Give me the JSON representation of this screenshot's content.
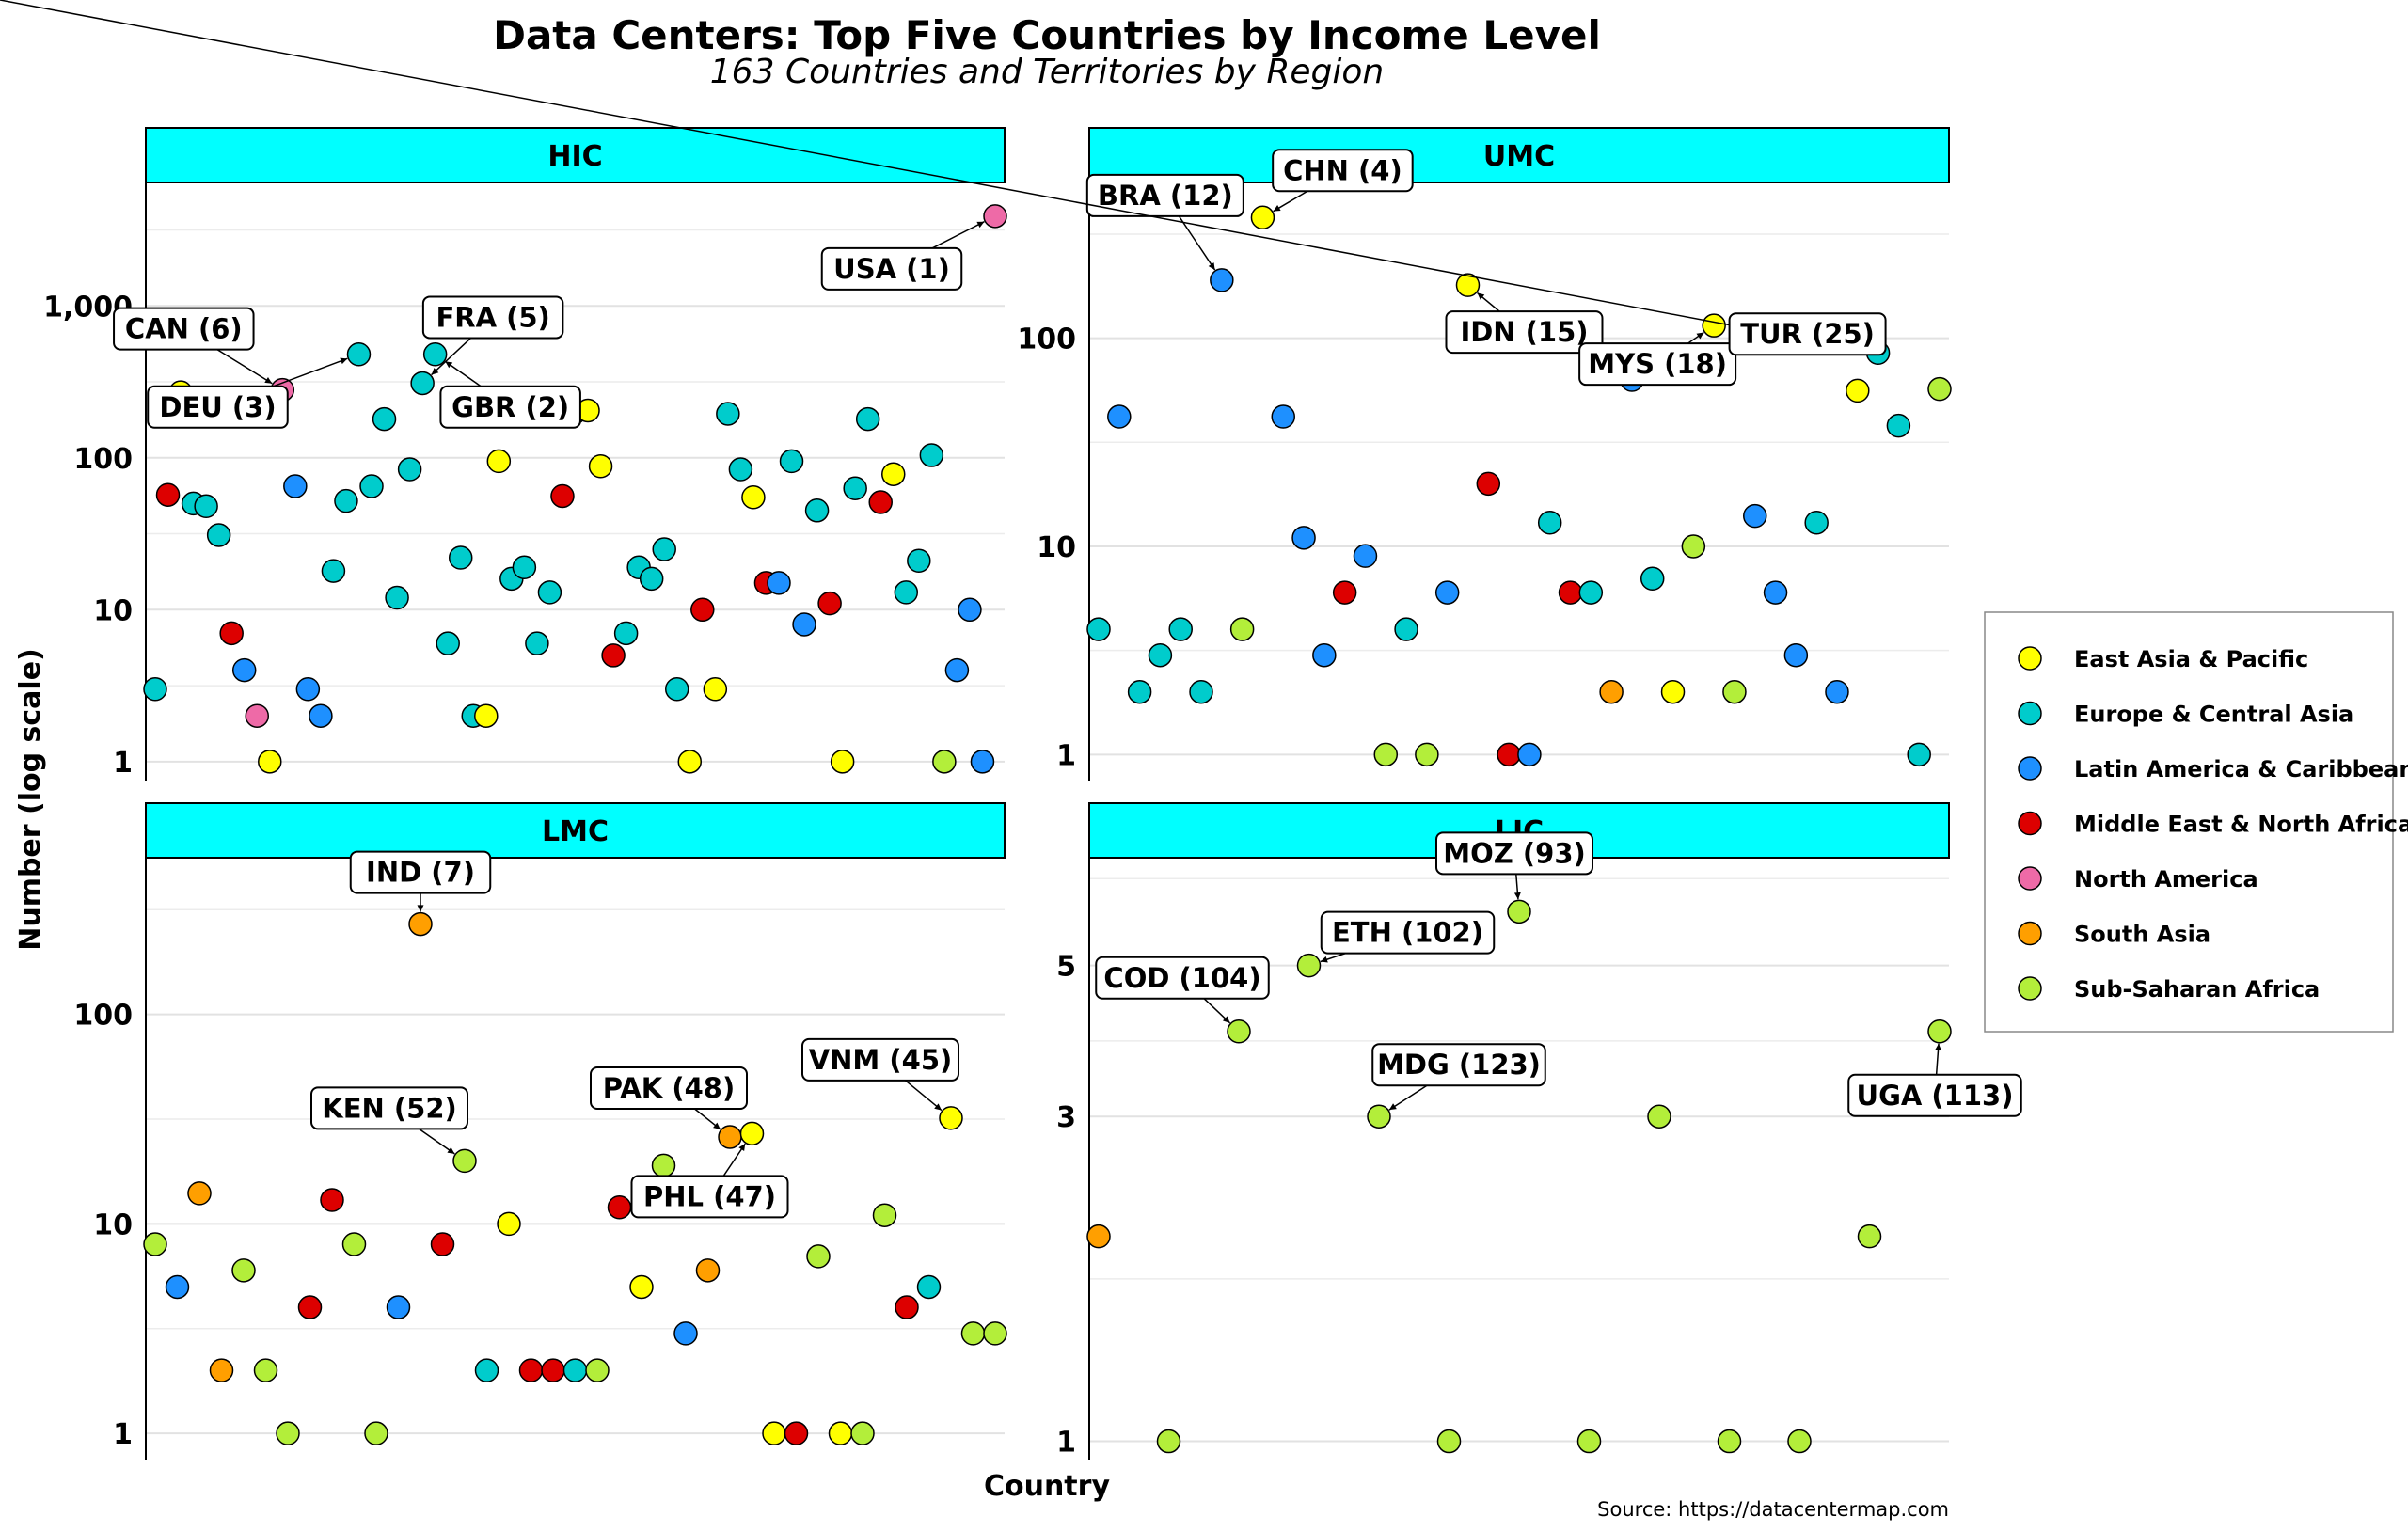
{
  "title": "Data Centers: Top Five Countries by Income Level",
  "subtitle": "163 Countries and Territories by Region",
  "caption": "Source: https://datacentermap.com",
  "region_colors": {
    "East Asia & Pacific": "#ffff00",
    "Europe & Central Asia": "#00cccc",
    "Latin America & Caribbean": "#1e90ff",
    "Middle East & North Africa": "#dd0000",
    "North America": "#ee6aa7",
    "South Asia": "#ff9f00",
    "Sub-Saharan Africa": "#b3ee3a"
  },
  "chart_data": {
    "type": "scatter",
    "facets": [
      "HIC",
      "UMC",
      "LMC",
      "LIC"
    ],
    "xlabel": "Country",
    "ylabel": "Number (log scale)",
    "y_scale": "log10",
    "grid": true,
    "legend_position": "right",
    "legend": [
      "East Asia & Pacific",
      "Europe & Central Asia",
      "Latin America & Caribbean",
      "Middle East & North Africa",
      "North America",
      "South Asia",
      "Sub-Saharan Africa"
    ],
    "panels": [
      {
        "name": "HIC",
        "ylim": [
          0.75,
          6500
        ],
        "yticks": [
          1,
          10,
          100,
          1000
        ],
        "ytick_labels": [
          "1",
          "10",
          "100",
          "1,000"
        ],
        "points": [
          [
            1,
            3,
            "ECA"
          ],
          [
            2,
            57,
            "MENA"
          ],
          [
            3,
            270,
            "EAP"
          ],
          [
            4,
            50,
            "ECA"
          ],
          [
            5,
            48,
            "ECA"
          ],
          [
            6,
            31,
            "ECA"
          ],
          [
            7,
            7,
            "MENA"
          ],
          [
            8,
            4,
            "LAC"
          ],
          [
            9,
            2,
            "NA"
          ],
          [
            10,
            1,
            "EAP"
          ],
          [
            11,
            280,
            "NA"
          ],
          [
            12,
            65,
            "LAC"
          ],
          [
            13,
            3,
            "LAC"
          ],
          [
            14,
            2,
            "LAC"
          ],
          [
            15,
            18,
            "ECA"
          ],
          [
            16,
            52,
            "ECA"
          ],
          [
            17,
            480,
            "ECA"
          ],
          [
            18,
            65,
            "ECA"
          ],
          [
            19,
            180,
            "ECA"
          ],
          [
            20,
            12,
            "ECA"
          ],
          [
            21,
            84,
            "ECA"
          ],
          [
            22,
            310,
            "ECA"
          ],
          [
            23,
            480,
            "ECA"
          ],
          [
            24,
            6,
            "ECA"
          ],
          [
            25,
            22,
            "ECA"
          ],
          [
            26,
            2,
            "ECA"
          ],
          [
            27,
            2,
            "EAP"
          ],
          [
            28,
            95,
            "EAP"
          ],
          [
            29,
            16,
            "ECA"
          ],
          [
            30,
            19,
            "ECA"
          ],
          [
            31,
            6,
            "ECA"
          ],
          [
            32,
            13,
            "ECA"
          ],
          [
            33,
            56,
            "MENA"
          ],
          [
            34,
            200,
            "ECA"
          ],
          [
            35,
            205,
            "EAP"
          ],
          [
            36,
            88,
            "EAP"
          ],
          [
            37,
            5,
            "MENA"
          ],
          [
            38,
            7,
            "ECA"
          ],
          [
            39,
            19,
            "ECA"
          ],
          [
            40,
            16,
            "ECA"
          ],
          [
            41,
            25,
            "ECA"
          ],
          [
            42,
            3,
            "ECA"
          ],
          [
            43,
            1,
            "EAP"
          ],
          [
            44,
            10,
            "MENA"
          ],
          [
            45,
            3,
            "EAP"
          ],
          [
            46,
            195,
            "ECA"
          ],
          [
            47,
            84,
            "ECA"
          ],
          [
            48,
            55,
            "EAP"
          ],
          [
            49,
            15,
            "MENA"
          ],
          [
            50,
            15,
            "LAC"
          ],
          [
            51,
            95,
            "ECA"
          ],
          [
            52,
            8,
            "LAC"
          ],
          [
            53,
            45,
            "ECA"
          ],
          [
            54,
            11,
            "MENA"
          ],
          [
            55,
            1,
            "EAP"
          ],
          [
            56,
            63,
            "ECA"
          ],
          [
            57,
            180,
            "ECA"
          ],
          [
            58,
            51,
            "MENA"
          ],
          [
            59,
            78,
            "EAP"
          ],
          [
            60,
            13,
            "ECA"
          ],
          [
            61,
            21,
            "ECA"
          ],
          [
            62,
            104,
            "ECA"
          ],
          [
            63,
            1,
            "SSA"
          ],
          [
            64,
            4,
            "LAC"
          ],
          [
            65,
            10,
            "LAC"
          ],
          [
            66,
            1,
            "LAC"
          ],
          [
            67,
            3900,
            "NA"
          ]
        ],
        "labels": [
          {
            "text": "USA (1)",
            "x": 67,
            "y": 3900
          },
          {
            "text": "DEU (3)",
            "x": 17,
            "y": 480
          },
          {
            "text": "GBR (2)",
            "x": 23,
            "y": 480
          },
          {
            "text": "FRA (5)",
            "x": 22,
            "y": 310
          },
          {
            "text": "CAN (6)",
            "x": 11,
            "y": 280
          }
        ]
      },
      {
        "name": "UMC",
        "ylim": [
          0.75,
          560
        ],
        "yticks": [
          1,
          10,
          100
        ],
        "ytick_labels": [
          "1",
          "10",
          "100"
        ],
        "points": [
          [
            1,
            4,
            "ECA"
          ],
          [
            2,
            42,
            "LAC"
          ],
          [
            3,
            2,
            "ECA"
          ],
          [
            4,
            3,
            "ECA"
          ],
          [
            5,
            4,
            "ECA"
          ],
          [
            6,
            2,
            "ECA"
          ],
          [
            7,
            190,
            "LAC"
          ],
          [
            8,
            4,
            "SSA"
          ],
          [
            9,
            380,
            "EAP"
          ],
          [
            10,
            42,
            "LAC"
          ],
          [
            11,
            11,
            "LAC"
          ],
          [
            12,
            3,
            "LAC"
          ],
          [
            13,
            6,
            "MENA"
          ],
          [
            14,
            9,
            "LAC"
          ],
          [
            15,
            1,
            "SSA"
          ],
          [
            16,
            4,
            "ECA"
          ],
          [
            17,
            1,
            "SSA"
          ],
          [
            18,
            6,
            "LAC"
          ],
          [
            19,
            180,
            "EAP"
          ],
          [
            20,
            20,
            "MENA"
          ],
          [
            21,
            1,
            "MENA"
          ],
          [
            22,
            1,
            "LAC"
          ],
          [
            23,
            13,
            "ECA"
          ],
          [
            24,
            6,
            "MENA"
          ],
          [
            25,
            6,
            "ECA"
          ],
          [
            26,
            2,
            "SA"
          ],
          [
            27,
            63,
            "LAC"
          ],
          [
            28,
            7,
            "ECA"
          ],
          [
            29,
            2,
            "EAP"
          ],
          [
            30,
            10,
            "SSA"
          ],
          [
            31,
            115,
            "EAP"
          ],
          [
            32,
            2,
            "SSA"
          ],
          [
            33,
            14,
            "LAC"
          ],
          [
            34,
            6,
            "LAC"
          ],
          [
            35,
            3,
            "LAC"
          ],
          [
            36,
            13,
            "ECA"
          ],
          [
            37,
            2,
            "LAC"
          ],
          [
            38,
            56,
            "EAP"
          ],
          [
            39,
            85,
            "ECA"
          ],
          [
            40,
            38,
            "ECA"
          ],
          [
            41,
            1,
            "ECA"
          ],
          [
            42,
            57,
            "SSA"
          ]
        ],
        "labels": [
          {
            "text": "BRA (12)",
            "x": 7,
            "y": 190
          },
          {
            "text": "CHN (4)",
            "x": 9,
            "y": 380
          },
          {
            "text": "IDN (15)",
            "x": 19,
            "y": 180
          },
          {
            "text": "MYS (18)",
            "x": 31,
            "y": 115
          },
          {
            "text": "TUR (25)",
            "x": 39,
            "y": 85
          }
        ]
      },
      {
        "name": "LMC",
        "ylim": [
          0.75,
          560
        ],
        "yticks": [
          1,
          10,
          100
        ],
        "ytick_labels": [
          "1",
          "10",
          "100"
        ],
        "points": [
          [
            1,
            8,
            "SSA"
          ],
          [
            2,
            5,
            "LAC"
          ],
          [
            3,
            14,
            "SA"
          ],
          [
            4,
            2,
            "SA"
          ],
          [
            5,
            6,
            "SSA"
          ],
          [
            6,
            2,
            "SSA"
          ],
          [
            7,
            1,
            "SSA"
          ],
          [
            8,
            4,
            "MENA"
          ],
          [
            9,
            13,
            "MENA"
          ],
          [
            10,
            8,
            "SSA"
          ],
          [
            11,
            1,
            "SSA"
          ],
          [
            12,
            4,
            "LAC"
          ],
          [
            13,
            270,
            "SA"
          ],
          [
            14,
            8,
            "MENA"
          ],
          [
            15,
            20,
            "SSA"
          ],
          [
            16,
            2,
            "ECA"
          ],
          [
            17,
            10,
            "EAP"
          ],
          [
            18,
            2,
            "MENA"
          ],
          [
            19,
            2,
            "MENA"
          ],
          [
            20,
            2,
            "ECA"
          ],
          [
            21,
            2,
            "SSA"
          ],
          [
            22,
            12,
            "MENA"
          ],
          [
            23,
            5,
            "EAP"
          ],
          [
            24,
            19,
            "SSA"
          ],
          [
            25,
            3,
            "LAC"
          ],
          [
            26,
            6,
            "SA"
          ],
          [
            27,
            26,
            "SA"
          ],
          [
            28,
            27,
            "EAP"
          ],
          [
            29,
            1,
            "EAP"
          ],
          [
            30,
            1,
            "MENA"
          ],
          [
            31,
            7,
            "SSA"
          ],
          [
            32,
            1,
            "EAP"
          ],
          [
            33,
            1,
            "SSA"
          ],
          [
            34,
            11,
            "SSA"
          ],
          [
            35,
            4,
            "MENA"
          ],
          [
            36,
            5,
            "ECA"
          ],
          [
            37,
            32,
            "EAP"
          ],
          [
            38,
            3,
            "SSA"
          ],
          [
            39,
            3,
            "SSA"
          ]
        ],
        "labels": [
          {
            "text": "IND (7)",
            "x": 13,
            "y": 270
          },
          {
            "text": "KEN (52)",
            "x": 15,
            "y": 20
          },
          {
            "text": "PHL (47)",
            "x": 28,
            "y": 27
          },
          {
            "text": "PAK (48)",
            "x": 27,
            "y": 26
          },
          {
            "text": "VNM (45)",
            "x": 37,
            "y": 32
          }
        ]
      },
      {
        "name": "LIC",
        "ylim": [
          0.94,
          7.2
        ],
        "yticks": [
          1,
          3,
          5
        ],
        "ytick_labels": [
          "1",
          "3",
          "5"
        ],
        "points": [
          [
            1,
            2,
            "SA"
          ],
          [
            2,
            1,
            "SSA"
          ],
          [
            3,
            4,
            "SSA"
          ],
          [
            4,
            5,
            "SSA"
          ],
          [
            5,
            3,
            "SSA"
          ],
          [
            6,
            1,
            "SSA"
          ],
          [
            7,
            6,
            "SSA"
          ],
          [
            8,
            1,
            "SSA"
          ],
          [
            9,
            3,
            "SSA"
          ],
          [
            10,
            1,
            "SSA"
          ],
          [
            11,
            1,
            "SSA"
          ],
          [
            12,
            2,
            "SSA"
          ],
          [
            13,
            4,
            "SSA"
          ]
        ],
        "labels": [
          {
            "text": "COD (104)",
            "x": 3,
            "y": 4
          },
          {
            "text": "ETH (102)",
            "x": 4,
            "y": 5
          },
          {
            "text": "MOZ (93)",
            "x": 7,
            "y": 6
          },
          {
            "text": "MDG (123)",
            "x": 5,
            "y": 3
          },
          {
            "text": "UGA (113)",
            "x": 13,
            "y": 4
          }
        ]
      }
    ]
  }
}
